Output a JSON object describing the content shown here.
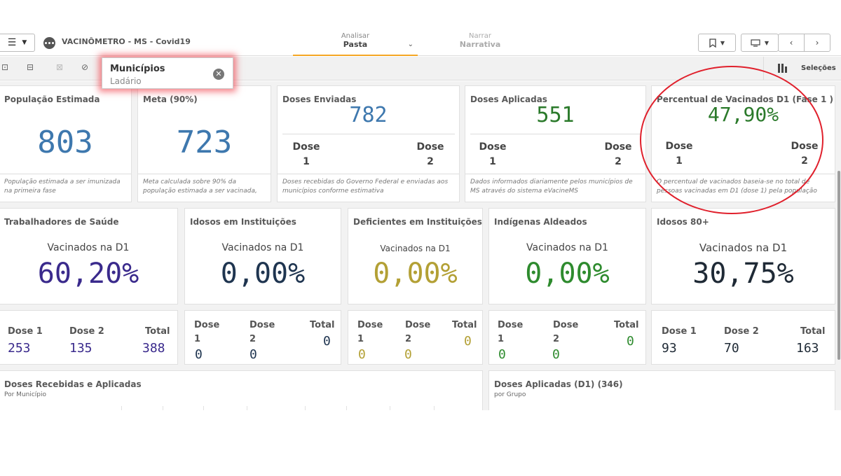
{
  "app": {
    "title": "VACINÔMETRO - MS - Covid19"
  },
  "nav": {
    "analyze_sub": "Analisar",
    "analyze_main": "Pasta",
    "narrate_sub": "Narrar",
    "narrate_main": "Narrativa"
  },
  "selection": {
    "field": "Municípios",
    "value": "Ladário",
    "selections_label": "Seleções"
  },
  "kpis": {
    "populacao": {
      "title": "População Estimada",
      "value": "803",
      "footnote": "População estimada a ser imunizada na primeira fase"
    },
    "meta": {
      "title": "Meta (90%)",
      "value": "723",
      "footnote": "Meta calculada sobre 90% da população estimada a ser vacinada,"
    },
    "enviadas": {
      "title": "Doses Enviadas",
      "value": "782",
      "dose1": "Dose 1",
      "dose2": "Dose 2",
      "footnote": "Doses recebidas do Governo Federal e enviadas aos municípios conforme estimativa"
    },
    "aplicadas": {
      "title": "Doses Aplicadas",
      "value": "551",
      "dose1": "Dose 1",
      "dose2": "Dose 2",
      "footnote": "Dados informados diariamente pelos municípios de MS através do sistema eVacineMS"
    },
    "percentual": {
      "title": "Percentual de Vacinados D1 (Fase 1 )",
      "value": "47,90%",
      "dose1": "Dose 1",
      "dose2": "Dose 2",
      "footnote": "O percentual de vacinados baseia-se no total de pessoas vacinadas em D1 (dose 1) pela população"
    }
  },
  "groups": [
    {
      "title": "Trabalhadores de Saúde",
      "label": "Vacinados na D1",
      "pct": "60,20%",
      "color": "#3a2a8c",
      "d1_label": "Dose 1",
      "d2_label": "Dose 2",
      "total_label": "Total",
      "d1": "253",
      "d2": "135",
      "total": "388"
    },
    {
      "title": "Idosos em Instituições",
      "label": "Vacinados na D1",
      "pct": "0,00%",
      "color": "#1f3550",
      "d1_label": "Dose 1",
      "d2_label": "Dose 2",
      "total_label": "Total",
      "d1": "0",
      "d2": "0",
      "total": "0"
    },
    {
      "title": "Deficientes em Instituições",
      "label": "Vacinados na D1",
      "pct": "0,00%",
      "color": "#b3a035",
      "d1_label": "Dose 1",
      "d2_label": "Dose 2",
      "total_label": "Total",
      "d1": "0",
      "d2": "0",
      "total": "0"
    },
    {
      "title": "Indígenas Aldeados",
      "label": "Vacinados na D1",
      "pct": "0,00%",
      "color": "#2e8b2e",
      "d1_label": "Dose 1",
      "d2_label": "Dose 2",
      "total_label": "Total",
      "d1": "0",
      "d2": "0",
      "total": "0"
    },
    {
      "title": "Idosos 80+",
      "label": "Vacinados na D1",
      "pct": "30,75%",
      "color": "#1f2a36",
      "d1_label": "Dose 1",
      "d2_label": "Dose 2",
      "total_label": "Total",
      "d1": "93",
      "d2": "70",
      "total": "163"
    }
  ],
  "charts": {
    "recebidas": {
      "title": "Doses Recebidas e Aplicadas",
      "subtitle": "Por Município"
    },
    "aplicadas_grupo": {
      "title": "Doses Aplicadas (D1) (346)",
      "subtitle": "por Grupo"
    }
  },
  "colors": {
    "blue_kpi": "#3e78ae",
    "green_kpi": "#2b7a2b",
    "annotation": "#e0202c",
    "tab_accent": "#f5a623"
  }
}
